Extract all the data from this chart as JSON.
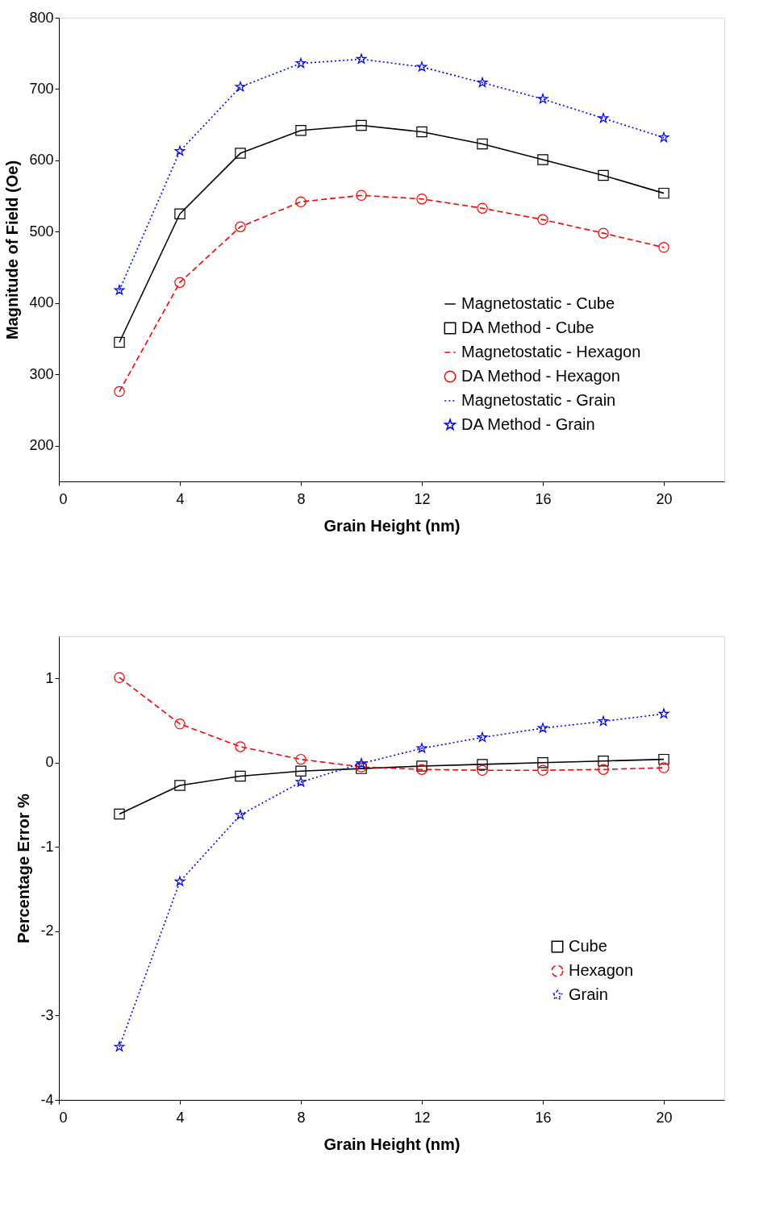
{
  "chart_data": [
    {
      "type": "line",
      "xlabel": "Grain Height (nm)",
      "ylabel": "Magnitude of Field (Oe)",
      "x": [
        2,
        4,
        6,
        8,
        10,
        12,
        14,
        16,
        18,
        20
      ],
      "xlim": [
        0,
        22
      ],
      "xticks": [
        0,
        4,
        8,
        12,
        16,
        20
      ],
      "ylim": [
        150,
        800
      ],
      "yticks": [
        200,
        300,
        400,
        500,
        600,
        700,
        800
      ],
      "grid": false,
      "legend": "right",
      "series": [
        {
          "name": "Magnetostatic - Cube",
          "color": "#000000",
          "line_style": "solid",
          "marker": "none",
          "values": [
            345,
            525,
            610,
            642,
            649,
            640,
            623,
            601,
            579,
            554
          ]
        },
        {
          "name": "DA Method - Cube",
          "type": "scatter",
          "color": "#000000",
          "marker": "square",
          "values": [
            345,
            525,
            610,
            642,
            649,
            640,
            623,
            601,
            579,
            554
          ]
        },
        {
          "name": "Magnetostatic - Hexagon",
          "color": "#ff0000",
          "line_style": "dashed",
          "marker": "none",
          "values": [
            276,
            429,
            507,
            542,
            551,
            546,
            533,
            517,
            498,
            478
          ]
        },
        {
          "name": "DA Method - Hexagon",
          "type": "scatter",
          "color": "#ff0000",
          "marker": "circle",
          "values": [
            276,
            429,
            507,
            542,
            551,
            546,
            533,
            517,
            498,
            478
          ]
        },
        {
          "name": "Magnetostatic - Grain",
          "color": "#0000ff",
          "line_style": "dotted",
          "marker": "none",
          "values": [
            418,
            613,
            703,
            736,
            742,
            731,
            709,
            686,
            659,
            632
          ]
        },
        {
          "name": "DA Method - Grain",
          "type": "scatter",
          "color": "#0000ff",
          "marker": "star",
          "values": [
            418,
            613,
            703,
            736,
            742,
            731,
            709,
            686,
            659,
            632
          ]
        }
      ]
    },
    {
      "type": "line",
      "xlabel": "Grain Height (nm)",
      "ylabel": "Percentage Error %",
      "x": [
        2,
        4,
        6,
        8,
        10,
        12,
        14,
        16,
        18,
        20
      ],
      "xlim": [
        0,
        22
      ],
      "xticks": [
        0,
        4,
        8,
        12,
        16,
        20
      ],
      "ylim": [
        -4,
        1.5
      ],
      "yticks": [
        -4,
        -3,
        -2,
        -1,
        0,
        1
      ],
      "grid": false,
      "legend": "bottom right",
      "series": [
        {
          "name": "Cube",
          "color": "#000000",
          "line_style": "solid",
          "marker": "square",
          "values": [
            -0.61,
            -0.27,
            -0.16,
            -0.1,
            -0.07,
            -0.04,
            -0.02,
            0,
            0.02,
            0.04
          ]
        },
        {
          "name": "Hexagon",
          "color": "#ff0000",
          "line_style": "dashed",
          "marker": "circle",
          "values": [
            1.01,
            0.46,
            0.19,
            0.04,
            -0.05,
            -0.08,
            -0.09,
            -0.09,
            -0.08,
            -0.06
          ]
        },
        {
          "name": "Grain",
          "color": "#0000ff",
          "line_style": "dotted",
          "marker": "star",
          "values": [
            -3.37,
            -1.41,
            -0.62,
            -0.23,
            -0.01,
            0.17,
            0.3,
            0.41,
            0.49,
            0.58
          ]
        }
      ]
    }
  ]
}
